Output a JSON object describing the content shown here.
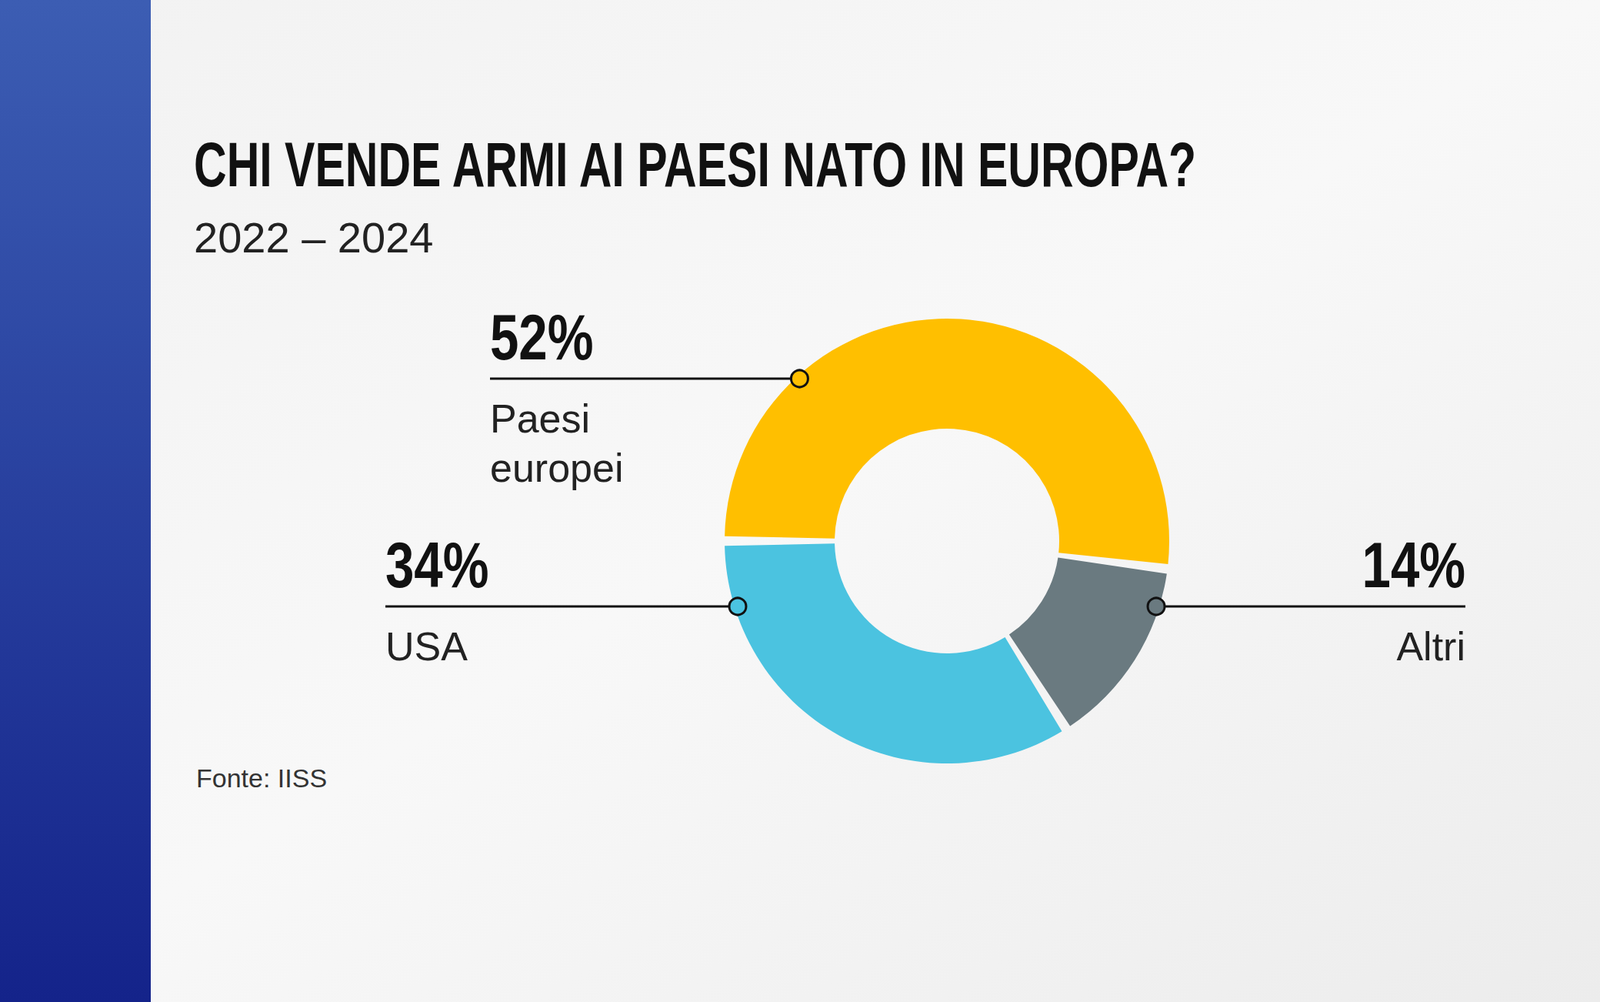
{
  "chart_data": {
    "type": "pie",
    "title": "CHI VENDE ARMI AI PAESI NATO IN EUROPA?",
    "subtitle": "2022 – 2024",
    "categories": [
      "Paesi europei",
      "Altri",
      "USA"
    ],
    "values": [
      52,
      14,
      34
    ],
    "value_labels": [
      "52%",
      "14%",
      "34%"
    ],
    "colors": [
      "#FFBF00",
      "#6A7A80",
      "#4BC3E0"
    ],
    "data_labels": true,
    "annotations": [
      "Fonte: IISS"
    ]
  }
}
